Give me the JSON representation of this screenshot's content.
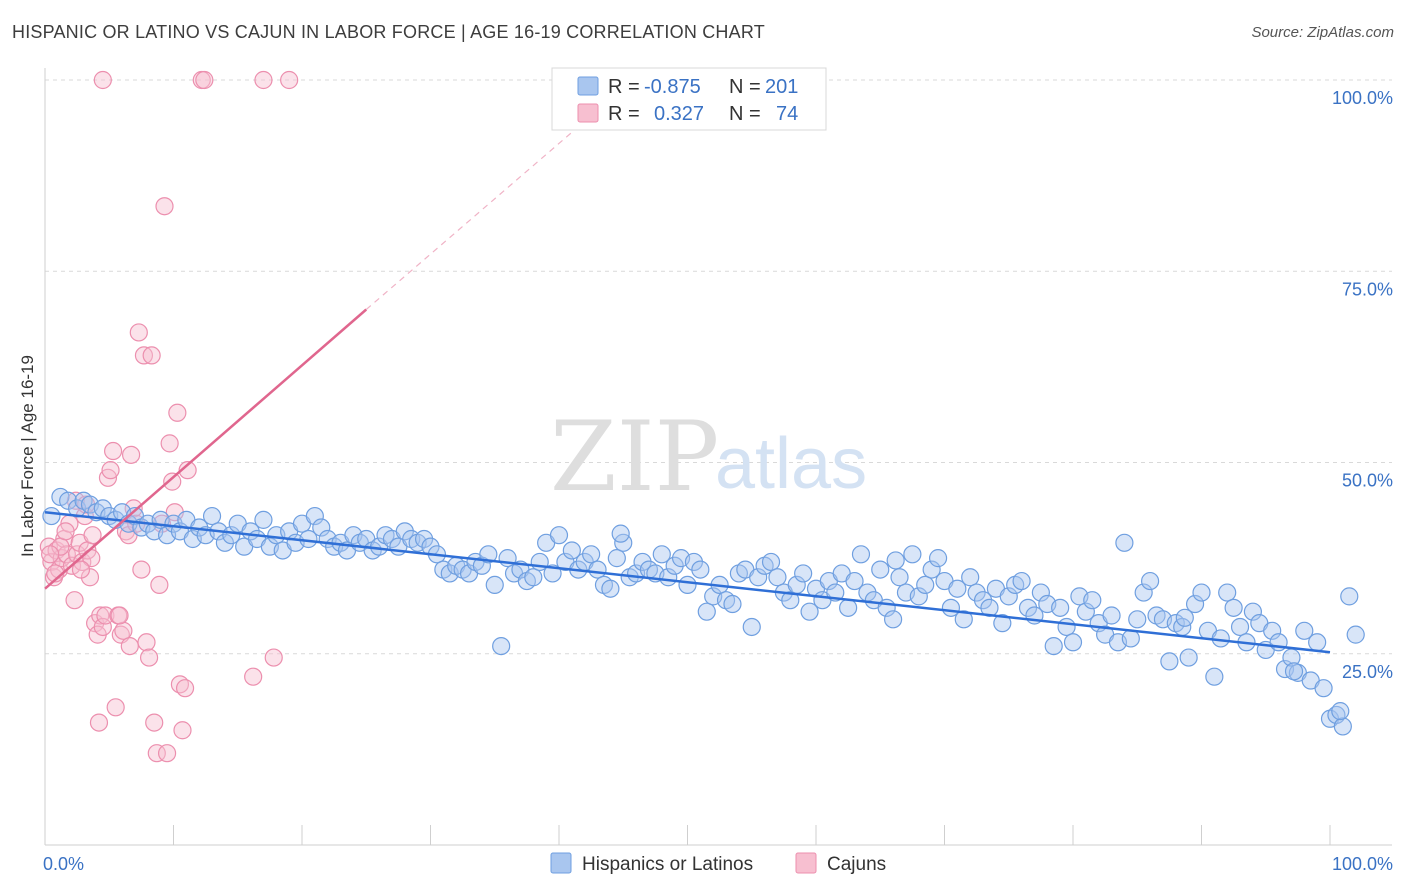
{
  "header": {
    "title": "HISPANIC OR LATINO VS CAJUN IN LABOR FORCE | AGE 16-19 CORRELATION CHART",
    "source": "Source: ZipAtlas.com"
  },
  "watermark": {
    "zip": "ZIP",
    "atlas": "atlas"
  },
  "legend": {
    "r_label": "R =",
    "n_label": "N =",
    "rows": [
      {
        "r": "-0.875",
        "n": "201"
      },
      {
        "r": "0.327",
        "n": "74"
      }
    ]
  },
  "bottom_legend": [
    "Hispanics or Latinos",
    "Cajuns"
  ],
  "colors": {
    "blue_fill": "#a9c6ef",
    "blue_stroke": "#6f9fe0",
    "blue_line": "#2f6fd6",
    "pink_fill": "#f7bfd0",
    "pink_stroke": "#ec8fae",
    "pink_line": "#e0668e",
    "tick_text": "#3a72c4",
    "grid": "#d9d9d9"
  },
  "chart_data": {
    "type": "scatter",
    "title": "HISPANIC OR LATINO VS CAJUN IN LABOR FORCE | AGE 16-19 CORRELATION CHART",
    "xlabel": "",
    "ylabel": "In Labor Force | Age 16-19",
    "xlim": [
      0,
      100
    ],
    "ylim": [
      0,
      102
    ],
    "x_tick_labels": [
      "0.0%",
      "100.0%"
    ],
    "y_ticks": [
      25,
      50,
      75,
      100
    ],
    "y_tick_labels": [
      "25.0%",
      "50.0%",
      "75.0%",
      "100.0%"
    ],
    "grid": "horizontal dashed",
    "legend_position": "top-center",
    "series": [
      {
        "name": "Hispanics or Latinos",
        "R": -0.875,
        "N": 201,
        "trend": {
          "x": [
            0,
            100
          ],
          "y": [
            43.5,
            25.2
          ]
        },
        "points": [
          [
            0.5,
            43
          ],
          [
            1.2,
            45.5
          ],
          [
            1.8,
            45
          ],
          [
            2.5,
            44
          ],
          [
            3,
            45
          ],
          [
            3.5,
            44.5
          ],
          [
            4,
            43.5
          ],
          [
            4.5,
            44
          ],
          [
            5,
            43
          ],
          [
            5.5,
            42.5
          ],
          [
            6,
            43.5
          ],
          [
            6.5,
            42
          ],
          [
            7,
            43
          ],
          [
            7.5,
            41.5
          ],
          [
            8,
            42
          ],
          [
            8.5,
            41
          ],
          [
            9,
            42.5
          ],
          [
            9.5,
            40.5
          ],
          [
            10,
            42
          ],
          [
            10.5,
            41
          ],
          [
            11,
            42.5
          ],
          [
            11.5,
            40
          ],
          [
            12,
            41.5
          ],
          [
            12.5,
            40.5
          ],
          [
            13,
            43
          ],
          [
            13.5,
            41
          ],
          [
            14,
            39.5
          ],
          [
            14.5,
            40.5
          ],
          [
            15,
            42
          ],
          [
            15.5,
            39
          ],
          [
            16,
            41
          ],
          [
            16.5,
            40
          ],
          [
            17,
            42.5
          ],
          [
            17.5,
            39
          ],
          [
            18,
            40.5
          ],
          [
            18.5,
            38.5
          ],
          [
            19,
            41
          ],
          [
            19.5,
            39.5
          ],
          [
            20,
            42
          ],
          [
            20.5,
            40
          ],
          [
            21,
            43
          ],
          [
            21.5,
            41.5
          ],
          [
            22,
            40
          ],
          [
            22.5,
            39
          ],
          [
            23,
            39.5
          ],
          [
            23.5,
            38.5
          ],
          [
            24,
            40.5
          ],
          [
            24.5,
            39.5
          ],
          [
            25,
            40
          ],
          [
            25.5,
            38.5
          ],
          [
            26,
            39
          ],
          [
            26.5,
            40.5
          ],
          [
            27,
            40
          ],
          [
            27.5,
            39
          ],
          [
            28,
            41
          ],
          [
            28.5,
            40
          ],
          [
            29,
            39.5
          ],
          [
            29.5,
            40
          ],
          [
            30,
            39
          ],
          [
            30.5,
            38
          ],
          [
            31,
            36
          ],
          [
            31.5,
            35.5
          ],
          [
            32,
            36.5
          ],
          [
            32.5,
            36
          ],
          [
            33,
            35.5
          ],
          [
            33.5,
            37
          ],
          [
            34,
            36.5
          ],
          [
            34.5,
            38
          ],
          [
            35,
            34
          ],
          [
            35.5,
            26
          ],
          [
            36,
            37.5
          ],
          [
            36.5,
            35.5
          ],
          [
            37,
            36
          ],
          [
            37.5,
            34.5
          ],
          [
            38,
            35
          ],
          [
            38.5,
            37
          ],
          [
            39,
            39.5
          ],
          [
            39.5,
            35.5
          ],
          [
            40,
            40.5
          ],
          [
            40.5,
            37
          ],
          [
            41,
            38.5
          ],
          [
            41.5,
            36
          ],
          [
            42,
            37
          ],
          [
            42.5,
            38
          ],
          [
            43,
            36
          ],
          [
            43.5,
            34
          ],
          [
            44,
            33.5
          ],
          [
            44.5,
            37.5
          ],
          [
            45,
            39.5
          ],
          [
            45.5,
            35
          ],
          [
            46,
            35.5
          ],
          [
            46.5,
            37
          ],
          [
            47,
            36
          ],
          [
            47.5,
            35.5
          ],
          [
            48,
            38
          ],
          [
            48.5,
            35
          ],
          [
            49,
            36.5
          ],
          [
            49.5,
            37.5
          ],
          [
            50,
            34
          ],
          [
            50.5,
            37
          ],
          [
            51,
            36
          ],
          [
            51.5,
            30.5
          ],
          [
            52,
            32.5
          ],
          [
            52.5,
            34
          ],
          [
            53,
            32
          ],
          [
            53.5,
            31.5
          ],
          [
            54,
            35.5
          ],
          [
            54.5,
            36
          ],
          [
            55,
            28.5
          ],
          [
            55.5,
            35
          ],
          [
            56,
            36.5
          ],
          [
            56.5,
            37
          ],
          [
            57,
            35
          ],
          [
            57.5,
            33
          ],
          [
            58,
            32
          ],
          [
            58.5,
            34
          ],
          [
            59,
            35.5
          ],
          [
            59.5,
            30.5
          ],
          [
            60,
            33.5
          ],
          [
            60.5,
            32
          ],
          [
            61,
            34.5
          ],
          [
            61.5,
            33
          ],
          [
            62,
            35.5
          ],
          [
            62.5,
            31
          ],
          [
            63,
            34.5
          ],
          [
            63.5,
            38
          ],
          [
            64,
            33
          ],
          [
            64.5,
            32
          ],
          [
            65,
            36
          ],
          [
            65.5,
            31
          ],
          [
            66,
            29.5
          ],
          [
            66.5,
            35
          ],
          [
            67,
            33
          ],
          [
            67.5,
            38
          ],
          [
            68,
            32.5
          ],
          [
            68.5,
            34
          ],
          [
            69,
            36
          ],
          [
            69.5,
            37.5
          ],
          [
            70,
            34.5
          ],
          [
            70.5,
            31
          ],
          [
            71,
            33.5
          ],
          [
            71.5,
            29.5
          ],
          [
            72,
            35
          ],
          [
            72.5,
            33
          ],
          [
            73,
            32
          ],
          [
            73.5,
            31
          ],
          [
            74,
            33.5
          ],
          [
            74.5,
            29
          ],
          [
            75,
            32.5
          ],
          [
            75.5,
            34
          ],
          [
            76,
            34.5
          ],
          [
            76.5,
            31
          ],
          [
            77,
            30
          ],
          [
            77.5,
            33
          ],
          [
            78,
            31.5
          ],
          [
            78.5,
            26
          ],
          [
            79,
            31
          ],
          [
            79.5,
            28.5
          ],
          [
            80,
            26.5
          ],
          [
            80.5,
            32.5
          ],
          [
            81,
            30.5
          ],
          [
            81.5,
            32
          ],
          [
            82,
            29
          ],
          [
            82.5,
            27.5
          ],
          [
            83,
            30
          ],
          [
            83.5,
            26.5
          ],
          [
            84,
            39.5
          ],
          [
            84.5,
            27
          ],
          [
            85,
            29.5
          ],
          [
            85.5,
            33
          ],
          [
            86,
            34.5
          ],
          [
            86.5,
            30
          ],
          [
            87,
            29.5
          ],
          [
            87.5,
            24
          ],
          [
            88,
            29
          ],
          [
            88.5,
            28.5
          ],
          [
            89,
            24.5
          ],
          [
            89.5,
            31.5
          ],
          [
            90,
            33
          ],
          [
            90.5,
            28
          ],
          [
            91,
            22
          ],
          [
            91.5,
            27
          ],
          [
            92,
            33
          ],
          [
            92.5,
            31
          ],
          [
            93,
            28.5
          ],
          [
            93.5,
            26.5
          ],
          [
            94,
            30.5
          ],
          [
            94.5,
            29
          ],
          [
            95,
            25.5
          ],
          [
            95.5,
            28
          ],
          [
            96,
            26.5
          ],
          [
            96.5,
            23
          ],
          [
            97,
            24.5
          ],
          [
            97.5,
            22.5
          ],
          [
            98,
            28
          ],
          [
            98.5,
            21.5
          ],
          [
            99,
            26.5
          ],
          [
            99.5,
            20.5
          ],
          [
            100,
            16.5
          ],
          [
            100.5,
            17
          ],
          [
            101,
            15.5
          ],
          [
            101.5,
            32.5
          ],
          [
            102,
            27.5
          ],
          [
            100.8,
            17.5
          ],
          [
            97.2,
            22.7
          ],
          [
            88.7,
            29.7
          ],
          [
            66.2,
            37.2
          ],
          [
            44.8,
            40.7
          ]
        ]
      },
      {
        "name": "Cajuns",
        "R": 0.327,
        "N": 74,
        "trend_solid": {
          "x": [
            0,
            25
          ],
          "y": [
            33.5,
            70
          ]
        },
        "trend_dashed": {
          "x": [
            25,
            44
          ],
          "y": [
            70,
            97.5
          ]
        },
        "points": [
          [
            0.3,
            39
          ],
          [
            0.5,
            37
          ],
          [
            0.7,
            35
          ],
          [
            0.9,
            38.5
          ],
          [
            1.1,
            36
          ],
          [
            1.3,
            37.5
          ],
          [
            1.5,
            40
          ],
          [
            1.7,
            38
          ],
          [
            1.9,
            42
          ],
          [
            2.1,
            36.5
          ],
          [
            2.3,
            32
          ],
          [
            2.5,
            38
          ],
          [
            2.7,
            39.5
          ],
          [
            2.9,
            37
          ],
          [
            3.1,
            43
          ],
          [
            3.3,
            38.5
          ],
          [
            3.5,
            35
          ],
          [
            3.7,
            40.5
          ],
          [
            3.9,
            29
          ],
          [
            4.1,
            27.5
          ],
          [
            4.3,
            30
          ],
          [
            4.5,
            28.5
          ],
          [
            4.7,
            30
          ],
          [
            4.9,
            48
          ],
          [
            5.1,
            49
          ],
          [
            5.3,
            51.5
          ],
          [
            5.5,
            18
          ],
          [
            5.7,
            30
          ],
          [
            5.9,
            27.5
          ],
          [
            6.1,
            28
          ],
          [
            6.3,
            41
          ],
          [
            6.5,
            40.5
          ],
          [
            6.7,
            51
          ],
          [
            6.9,
            44
          ],
          [
            7.1,
            42
          ],
          [
            7.3,
            67
          ],
          [
            7.5,
            36
          ],
          [
            7.7,
            64
          ],
          [
            7.9,
            26.5
          ],
          [
            8.1,
            24.5
          ],
          [
            8.3,
            64
          ],
          [
            8.5,
            16
          ],
          [
            8.7,
            12
          ],
          [
            8.9,
            34
          ],
          [
            9.1,
            42
          ],
          [
            9.3,
            83.5
          ],
          [
            9.5,
            12
          ],
          [
            9.7,
            52.5
          ],
          [
            9.9,
            47.5
          ],
          [
            10.1,
            43.5
          ],
          [
            10.3,
            56.5
          ],
          [
            10.5,
            21
          ],
          [
            10.7,
            15
          ],
          [
            10.9,
            20.5
          ],
          [
            11.1,
            49
          ],
          [
            12.2,
            100
          ],
          [
            12.4,
            100
          ],
          [
            17,
            100
          ],
          [
            19,
            100
          ],
          [
            4.5,
            100
          ],
          [
            16.2,
            22
          ],
          [
            17.8,
            24.5
          ],
          [
            2.4,
            45
          ],
          [
            1.2,
            39
          ],
          [
            0.8,
            35.5
          ],
          [
            3.2,
            44.5
          ],
          [
            4.2,
            16
          ],
          [
            5.8,
            30
          ],
          [
            6.6,
            26
          ],
          [
            0.4,
            38
          ],
          [
            1.6,
            41
          ],
          [
            3.6,
            37.5
          ],
          [
            2.8,
            36
          ]
        ]
      }
    ]
  }
}
